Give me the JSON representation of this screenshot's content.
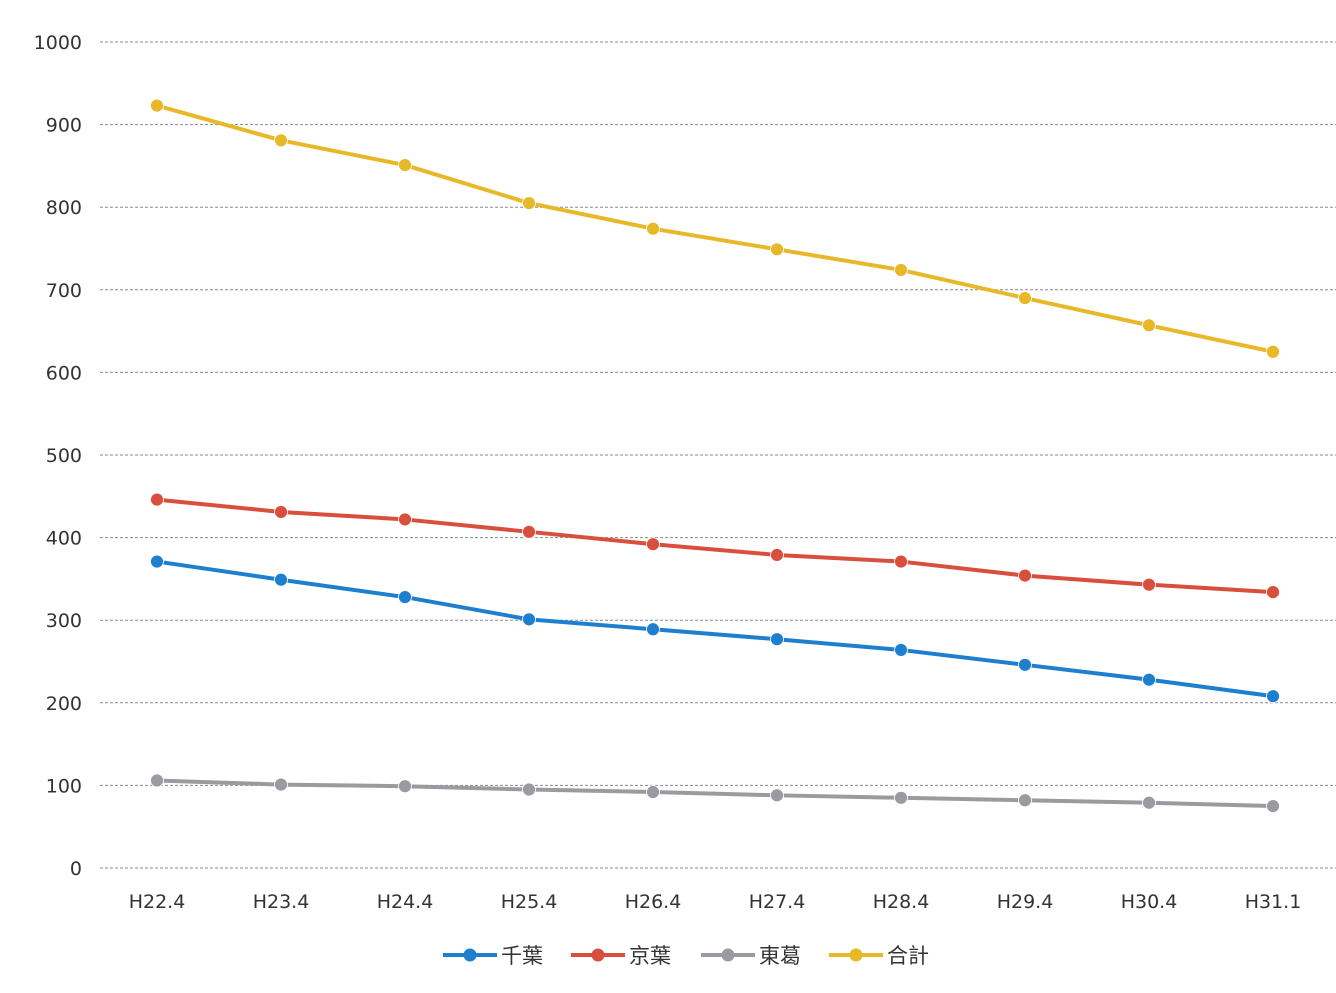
{
  "chart_data": {
    "type": "line",
    "categories": [
      "H22.4",
      "H23.4",
      "H24.4",
      "H25.4",
      "H26.4",
      "H27.4",
      "H28.4",
      "H29.4",
      "H30.4",
      "H31.1"
    ],
    "ylim": [
      0,
      1000
    ],
    "yticks": [
      0,
      100,
      200,
      300,
      400,
      500,
      600,
      700,
      800,
      900,
      1000
    ],
    "grid": true,
    "legend_position": "bottom",
    "series": [
      {
        "name": "千葉",
        "color": "#1f7fcf",
        "values": [
          371,
          349,
          328,
          301,
          289,
          277,
          264,
          246,
          228,
          208
        ]
      },
      {
        "name": "京葉",
        "color": "#d94f3d",
        "values": [
          446,
          431,
          422,
          407,
          392,
          379,
          371,
          354,
          343,
          334
        ]
      },
      {
        "name": "東葛",
        "color": "#9a9aa0",
        "values": [
          106,
          101,
          99,
          95,
          92,
          88,
          85,
          82,
          79,
          75
        ]
      },
      {
        "name": "合計",
        "color": "#e8b828",
        "values": [
          923,
          881,
          851,
          805,
          774,
          749,
          724,
          690,
          657,
          625
        ]
      }
    ]
  }
}
